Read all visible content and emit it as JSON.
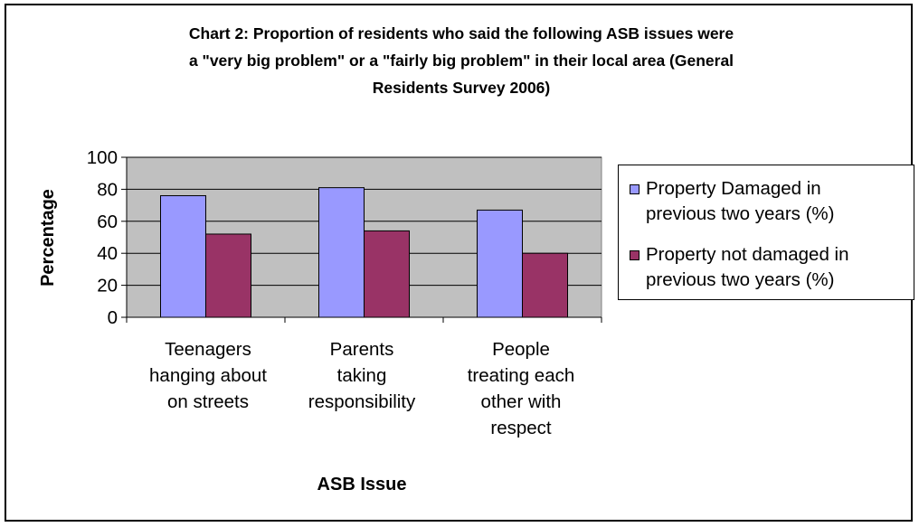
{
  "chart_data": {
    "type": "bar",
    "title_lines": [
      "Chart 2: Proportion of residents who said the following ASB issues were",
      "a \"very big problem\" or a \"fairly big problem\" in their local area (General",
      "Residents Survey 2006)"
    ],
    "xlabel": "ASB Issue",
    "ylabel": "Percentage",
    "ylim": [
      0,
      100
    ],
    "yticks": [
      0,
      20,
      40,
      60,
      80,
      100
    ],
    "categories": [
      "Teenagers hanging about on streets",
      "Parents taking responsibility",
      "People treating each other with respect"
    ],
    "category_lines": [
      [
        "Teenagers",
        "hanging about",
        "on streets"
      ],
      [
        "Parents",
        "taking",
        "responsibility"
      ],
      [
        "People",
        "treating each",
        "other with",
        "respect"
      ]
    ],
    "series": [
      {
        "name": "Property Damaged in previous two years (%)",
        "legend_lines": [
          "Property Damaged in",
          "previous two years (%)"
        ],
        "color": "#9999FF",
        "values": [
          76,
          81,
          67
        ]
      },
      {
        "name": "Property not damaged in previous two years (%)",
        "legend_lines": [
          "Property not damaged in",
          "previous two years (%)"
        ],
        "color": "#993366",
        "values": [
          52,
          54,
          40
        ]
      }
    ],
    "grid": true,
    "plot_background": "#C0C0C0",
    "legend_position": "right"
  }
}
